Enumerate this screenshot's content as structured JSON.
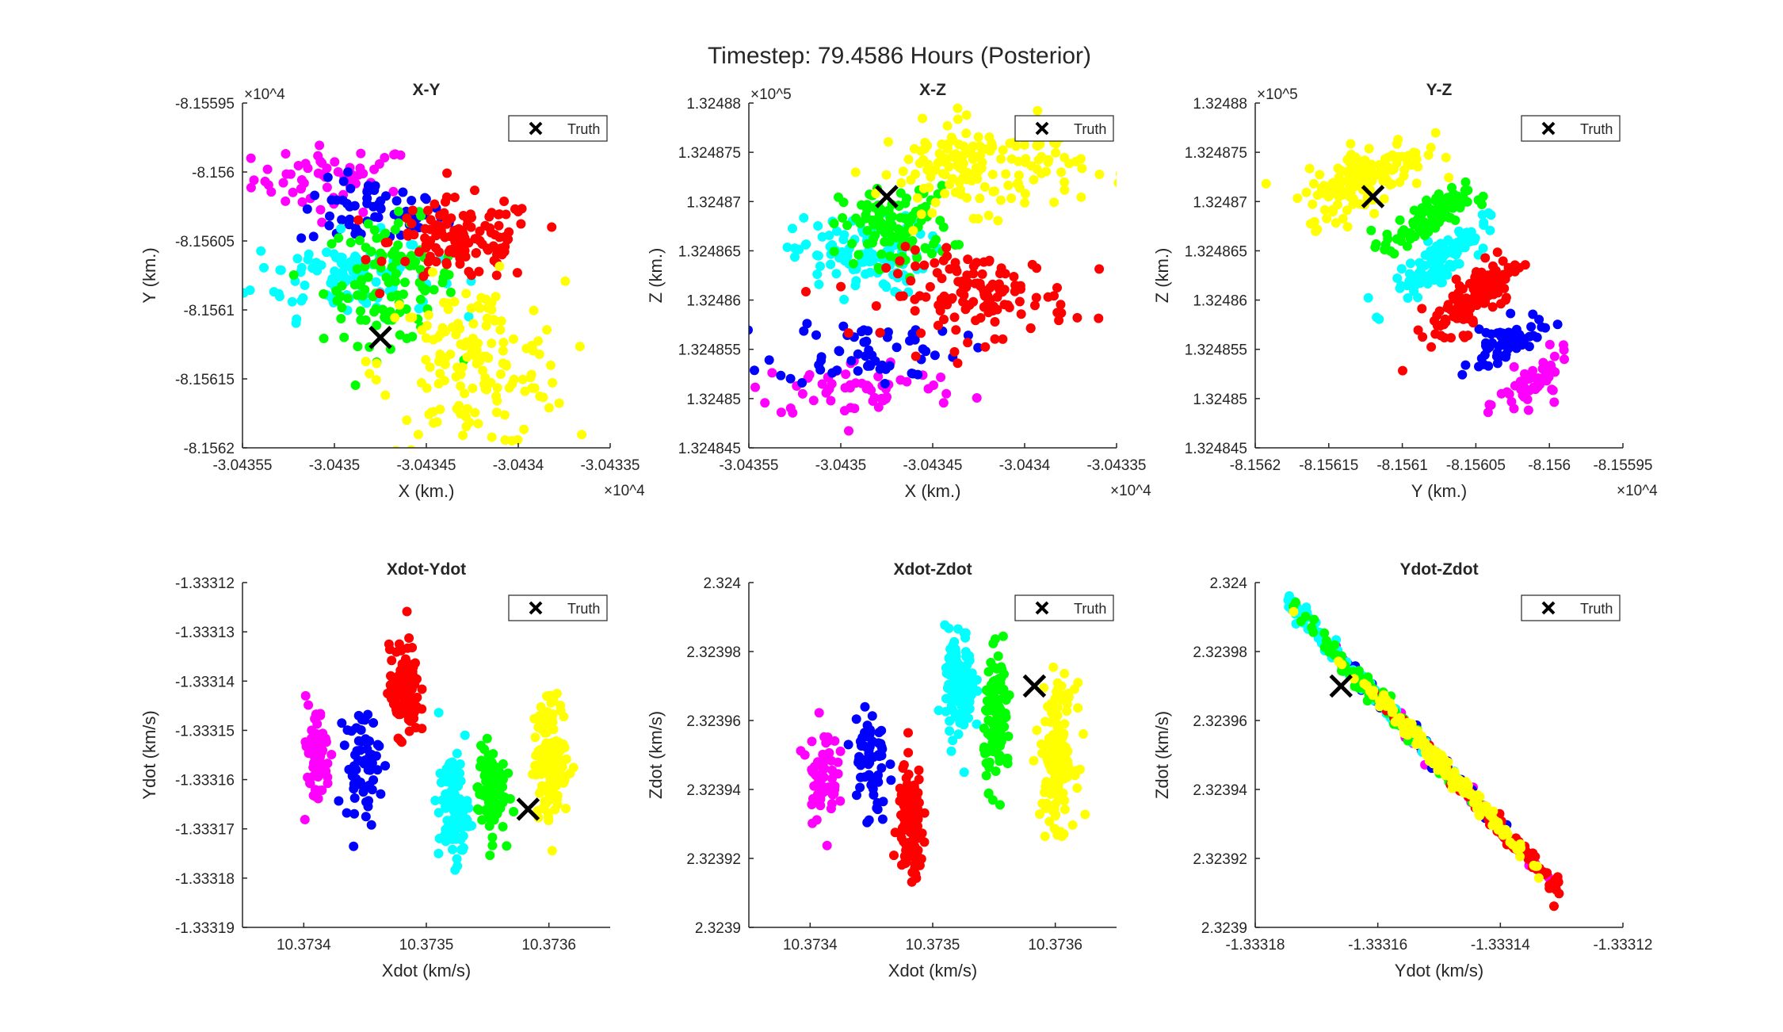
{
  "figure": {
    "title": "Timestep: 79.4586 Hours (Posterior)"
  },
  "colors": {
    "cluster_1": "#ff00ff",
    "cluster_2": "#0000ff",
    "cluster_3": "#00ffff",
    "cluster_4": "#00ff00",
    "cluster_5": "#ff0000",
    "cluster_6": "#ffff00",
    "truth": "#000000"
  },
  "chart_data": [
    {
      "type": "scatter",
      "title": "X-Y",
      "xlabel": "X (km.)",
      "ylabel": "Y (km.)",
      "x_exponent": "×10^4",
      "y_exponent": "×10^4",
      "xlim": [
        -30435.5,
        -30433.5
      ],
      "ylim": [
        -81562,
        -81559.5
      ],
      "xticks": [
        -30435.5,
        -30435,
        -30434.5,
        -30434,
        -30433.5
      ],
      "xtick_labels": [
        "-3.04355",
        "-3.0435",
        "-3.04345",
        "-3.0434",
        "-3.04335"
      ],
      "yticks": [
        -81562,
        -81561.5,
        -81561,
        -81560.5,
        -81560,
        -81559.5
      ],
      "ytick_labels": [
        "-8.1562",
        "-8.15615",
        "-8.1561",
        "-8.15605",
        "-8.156",
        "-8.15595"
      ],
      "legend": {
        "label": "Truth",
        "position": "top-right"
      },
      "truth": {
        "x": -30434.75,
        "y": -81561.2
      },
      "clusters": [
        {
          "color": "cluster_1",
          "cx": -30435.0,
          "cy": -81560.05,
          "sx": 0.22,
          "sy": 0.12,
          "r": 0,
          "n": 60
        },
        {
          "color": "cluster_2",
          "cx": -30434.8,
          "cy": -81560.3,
          "sx": 0.2,
          "sy": 0.12,
          "r": 0,
          "n": 60
        },
        {
          "color": "cluster_3",
          "cx": -30434.95,
          "cy": -81560.75,
          "sx": 0.25,
          "sy": 0.15,
          "r": 0,
          "n": 110
        },
        {
          "color": "cluster_4",
          "cx": -30434.7,
          "cy": -81560.8,
          "sx": 0.18,
          "sy": 0.22,
          "r": 0,
          "n": 110
        },
        {
          "color": "cluster_5",
          "cx": -30434.3,
          "cy": -81560.5,
          "sx": 0.2,
          "sy": 0.15,
          "r": 0,
          "n": 130
        },
        {
          "color": "cluster_6",
          "cx": -30434.25,
          "cy": -81561.4,
          "sx": 0.25,
          "sy": 0.3,
          "r": 0,
          "n": 160
        }
      ]
    },
    {
      "type": "scatter",
      "title": "X-Z",
      "xlabel": "X (km.)",
      "ylabel": "Z (km.)",
      "x_exponent": "×10^4",
      "y_exponent": "×10^5",
      "xlim": [
        -30435.5,
        -30433.5
      ],
      "ylim": [
        132484.5,
        132488.0
      ],
      "xticks": [
        -30435.5,
        -30435,
        -30434.5,
        -30434,
        -30433.5
      ],
      "xtick_labels": [
        "-3.04355",
        "-3.0435",
        "-3.04345",
        "-3.0434",
        "-3.04335"
      ],
      "yticks": [
        132484.5,
        132485.0,
        132485.5,
        132486.0,
        132486.5,
        132487.0,
        132487.5,
        132488.0
      ],
      "ytick_labels": [
        "1.324845",
        "1.32485",
        "1.324855",
        "1.32486",
        "1.324865",
        "1.32487",
        "1.324875",
        "1.32488"
      ],
      "legend": {
        "label": "Truth",
        "position": "top-right"
      },
      "truth": {
        "x": -30434.75,
        "y": 132487.05
      },
      "clusters": [
        {
          "color": "cluster_1",
          "cx": -30434.9,
          "cy": 132485.1,
          "sx": 0.3,
          "sy": 0.15,
          "r": 0,
          "n": 60
        },
        {
          "color": "cluster_2",
          "cx": -30434.85,
          "cy": 132485.5,
          "sx": 0.25,
          "sy": 0.18,
          "r": 0,
          "n": 60
        },
        {
          "color": "cluster_3",
          "cx": -30434.9,
          "cy": 132486.45,
          "sx": 0.18,
          "sy": 0.2,
          "r": 0,
          "n": 110
        },
        {
          "color": "cluster_4",
          "cx": -30434.7,
          "cy": 132486.75,
          "sx": 0.15,
          "sy": 0.2,
          "r": 0,
          "n": 110
        },
        {
          "color": "cluster_5",
          "cx": -30434.25,
          "cy": 132486.05,
          "sx": 0.25,
          "sy": 0.22,
          "r": 0,
          "n": 130
        },
        {
          "color": "cluster_6",
          "cx": -30434.25,
          "cy": 132487.35,
          "sx": 0.28,
          "sy": 0.22,
          "r": 0,
          "n": 160
        }
      ]
    },
    {
      "type": "scatter",
      "title": "Y-Z",
      "xlabel": "Y (km.)",
      "ylabel": "Z (km.)",
      "x_exponent": "×10^4",
      "y_exponent": "×10^5",
      "xlim": [
        -81562,
        -81559.5
      ],
      "ylim": [
        132484.5,
        132488.0
      ],
      "xticks": [
        -81562,
        -81561.5,
        -81561,
        -81560.5,
        -81560,
        -81559.5
      ],
      "xtick_labels": [
        "-8.1562",
        "-8.15615",
        "-8.1561",
        "-8.15605",
        "-8.156",
        "-8.15595"
      ],
      "yticks": [
        132484.5,
        132485.0,
        132485.5,
        132486.0,
        132486.5,
        132487.0,
        132487.5,
        132488.0
      ],
      "ytick_labels": [
        "1.324845",
        "1.32485",
        "1.324855",
        "1.32486",
        "1.324865",
        "1.32487",
        "1.324875",
        "1.32488"
      ],
      "legend": {
        "label": "Truth",
        "position": "top-right"
      },
      "truth": {
        "x": -81561.2,
        "y": 132487.05
      },
      "clusters": [
        {
          "color": "cluster_1",
          "cx": -81560.1,
          "cy": 132485.15,
          "sx": 0.12,
          "sy": 0.14,
          "r": 0.6,
          "n": 60
        },
        {
          "color": "cluster_2",
          "cx": -81560.3,
          "cy": 132485.55,
          "sx": 0.12,
          "sy": 0.14,
          "r": 0.6,
          "n": 60
        },
        {
          "color": "cluster_3",
          "cx": -81560.75,
          "cy": 132486.4,
          "sx": 0.16,
          "sy": 0.2,
          "r": 0.85,
          "n": 110
        },
        {
          "color": "cluster_4",
          "cx": -81560.85,
          "cy": 132486.8,
          "sx": 0.14,
          "sy": 0.14,
          "r": 0.7,
          "n": 110
        },
        {
          "color": "cluster_5",
          "cx": -81560.5,
          "cy": 132486.05,
          "sx": 0.15,
          "sy": 0.22,
          "r": 0.75,
          "n": 130
        },
        {
          "color": "cluster_6",
          "cx": -81561.25,
          "cy": 132487.25,
          "sx": 0.2,
          "sy": 0.2,
          "r": 0.6,
          "n": 160
        }
      ]
    },
    {
      "type": "scatter",
      "title": "Xdot-Ydot",
      "xlabel": "Xdot (km/s)",
      "ylabel": "Ydot (km/s)",
      "xlim": [
        10.37335,
        10.37365
      ],
      "ylim": [
        -1.33319,
        -1.33312
      ],
      "xticks": [
        10.3734,
        10.3735,
        10.3736
      ],
      "xtick_labels": [
        "10.3734",
        "10.3735",
        "10.3736"
      ],
      "yticks": [
        -1.33319,
        -1.33318,
        -1.33317,
        -1.33316,
        -1.33315,
        -1.33314,
        -1.33313,
        -1.33312
      ],
      "ytick_labels": [
        "-1.33319",
        "-1.33318",
        "-1.33317",
        "-1.33316",
        "-1.33315",
        "-1.33314",
        "-1.33313",
        "-1.33312"
      ],
      "legend": {
        "label": "Truth",
        "position": "top-right"
      },
      "truth": {
        "x": 10.373583,
        "y": -1.333166
      },
      "clusters": [
        {
          "color": "cluster_1",
          "cx": 10.37341,
          "cy": -1.333155,
          "sx": 6e-06,
          "sy": 5.5e-06,
          "r": 0,
          "n": 60
        },
        {
          "color": "cluster_2",
          "cx": 10.373448,
          "cy": -1.333157,
          "sx": 7e-06,
          "sy": 5.5e-06,
          "r": 0,
          "n": 60
        },
        {
          "color": "cluster_3",
          "cx": 10.373522,
          "cy": -1.333166,
          "sx": 6e-06,
          "sy": 5.5e-06,
          "r": 0,
          "n": 110
        },
        {
          "color": "cluster_4",
          "cx": 10.373553,
          "cy": -1.333162,
          "sx": 5.5e-06,
          "sy": 4.5e-06,
          "r": 0,
          "n": 110
        },
        {
          "color": "cluster_5",
          "cx": 10.373482,
          "cy": -1.333142,
          "sx": 6e-06,
          "sy": 4.5e-06,
          "r": 0,
          "n": 130
        },
        {
          "color": "cluster_6",
          "cx": 10.373602,
          "cy": -1.333156,
          "sx": 7e-06,
          "sy": 6e-06,
          "r": 0,
          "n": 160
        }
      ]
    },
    {
      "type": "scatter",
      "title": "Xdot-Zdot",
      "xlabel": "Xdot (km/s)",
      "ylabel": "Zdot (km/s)",
      "xlim": [
        10.37335,
        10.37365
      ],
      "ylim": [
        2.3239,
        2.324
      ],
      "xticks": [
        10.3734,
        10.3735,
        10.3736
      ],
      "xtick_labels": [
        "10.3734",
        "10.3735",
        "10.3736"
      ],
      "yticks": [
        2.3239,
        2.32392,
        2.32394,
        2.32396,
        2.32398,
        2.324
      ],
      "ytick_labels": [
        "2.3239",
        "2.32392",
        "2.32394",
        "2.32396",
        "2.32398",
        "2.324"
      ],
      "legend": {
        "label": "Truth",
        "position": "top-right"
      },
      "truth": {
        "x": 10.373583,
        "y": 2.32397
      },
      "clusters": [
        {
          "color": "cluster_1",
          "cx": 10.37341,
          "cy": 2.323945,
          "sx": 6e-06,
          "sy": 7e-06,
          "r": 0,
          "n": 60
        },
        {
          "color": "cluster_2",
          "cx": 10.373448,
          "cy": 2.323948,
          "sx": 7e-06,
          "sy": 9e-06,
          "r": 0,
          "n": 60
        },
        {
          "color": "cluster_3",
          "cx": 10.373522,
          "cy": 2.32397,
          "sx": 6e-06,
          "sy": 8e-06,
          "r": 0,
          "n": 110
        },
        {
          "color": "cluster_4",
          "cx": 10.373553,
          "cy": 2.32396,
          "sx": 5.5e-06,
          "sy": 9e-06,
          "r": 0,
          "n": 110
        },
        {
          "color": "cluster_5",
          "cx": 10.373482,
          "cy": 2.32393,
          "sx": 5e-06,
          "sy": 8e-06,
          "r": 0,
          "n": 130
        },
        {
          "color": "cluster_6",
          "cx": 10.373602,
          "cy": 2.32395,
          "sx": 7e-06,
          "sy": 1e-05,
          "r": 0,
          "n": 160
        }
      ]
    },
    {
      "type": "scatter",
      "title": "Ydot-Zdot",
      "xlabel": "Ydot (km/s)",
      "ylabel": "Zdot (km/s)",
      "xlim": [
        -1.33318,
        -1.33312
      ],
      "ylim": [
        2.3239,
        2.324
      ],
      "xticks": [
        -1.33318,
        -1.33316,
        -1.33314,
        -1.33312
      ],
      "xtick_labels": [
        "-1.33318",
        "-1.33316",
        "-1.33314",
        "-1.33312"
      ],
      "yticks": [
        2.3239,
        2.32392,
        2.32394,
        2.32396,
        2.32398,
        2.324
      ],
      "ytick_labels": [
        "2.3239",
        "2.32392",
        "2.32394",
        "2.32396",
        "2.32398",
        "2.324"
      ],
      "legend": {
        "label": "Truth",
        "position": "top-right"
      },
      "truth": {
        "x": -1.333166,
        "y": 2.32397
      },
      "clusters": [
        {
          "color": "cluster_1",
          "cx": -1.333152,
          "cy": 2.323946,
          "sx": 5e-06,
          "sy": 8e-07,
          "r": -0.95,
          "n": 60,
          "band": {
            "x0": -1.333174,
            "y0": 2.323993,
            "x1": -1.333131,
            "y1": 2.323912
          }
        },
        {
          "color": "cluster_2",
          "cx": -1.333155,
          "cy": 2.32395,
          "sx": 6e-06,
          "sy": 8e-07,
          "r": -0.95,
          "n": 60,
          "band": {
            "x0": -1.333174,
            "y0": 2.323993,
            "x1": -1.333131,
            "y1": 2.323912
          }
        },
        {
          "color": "cluster_3",
          "cx": -1.333163,
          "cy": 2.323965,
          "sx": 6e-06,
          "sy": 8e-07,
          "r": -0.95,
          "n": 110,
          "band": {
            "x0": -1.333174,
            "y0": 2.323993,
            "x1": -1.333131,
            "y1": 2.323912
          }
        },
        {
          "color": "cluster_4",
          "cx": -1.333158,
          "cy": 2.323956,
          "sx": 6e-06,
          "sy": 8e-07,
          "r": -0.95,
          "n": 110,
          "band": {
            "x0": -1.333174,
            "y0": 2.323993,
            "x1": -1.333131,
            "y1": 2.323912
          }
        },
        {
          "color": "cluster_5",
          "cx": -1.333142,
          "cy": 2.323928,
          "sx": 6e-06,
          "sy": 8e-07,
          "r": -0.95,
          "n": 130,
          "band": {
            "x0": -1.333174,
            "y0": 2.323993,
            "x1": -1.333131,
            "y1": 2.323912
          }
        },
        {
          "color": "cluster_6",
          "cx": -1.33315,
          "cy": 2.323942,
          "sx": 7e-06,
          "sy": 8e-07,
          "r": -0.95,
          "n": 160,
          "band": {
            "x0": -1.333174,
            "y0": 2.323993,
            "x1": -1.333131,
            "y1": 2.323912
          }
        }
      ]
    }
  ]
}
